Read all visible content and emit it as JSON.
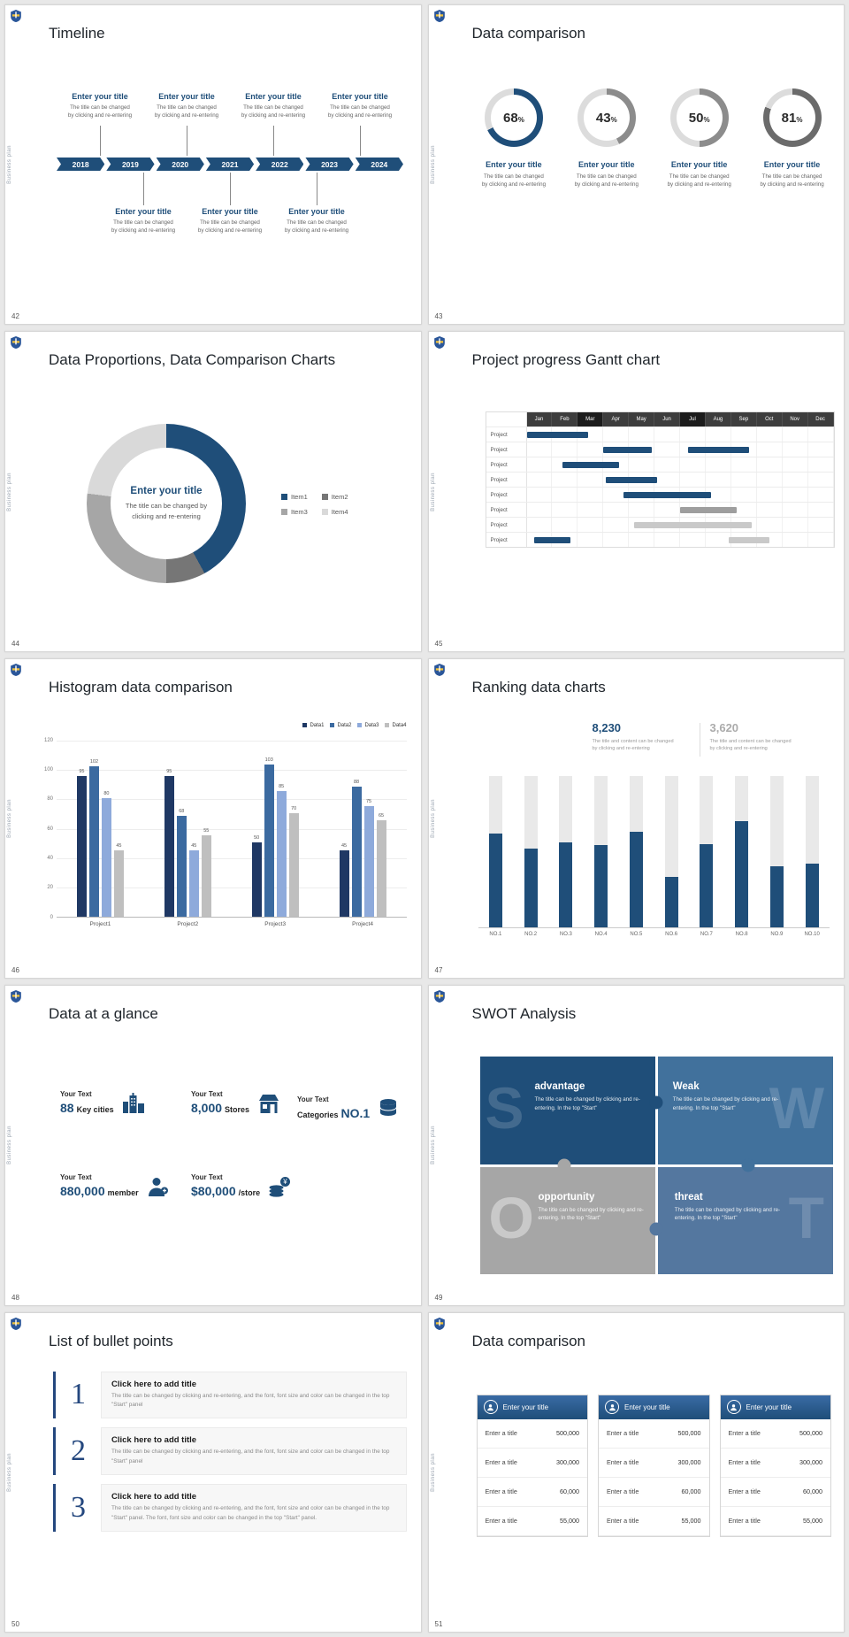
{
  "common": {
    "brand_vertical_text": "Business plan",
    "accent_color": "#1F4E79"
  },
  "slides": [
    {
      "number": "42",
      "title": "Timeline",
      "type": "timeline",
      "years": [
        "2018",
        "2019",
        "2020",
        "2021",
        "2022",
        "2023",
        "2024"
      ],
      "entries_top": [
        {
          "title": "Enter your title",
          "body": [
            "The title can be changed",
            "by clicking and re-entering"
          ]
        },
        {
          "title": "Enter your title",
          "body": [
            "The title can be changed",
            "by clicking and re-entering"
          ]
        },
        {
          "title": "Enter your title",
          "body": [
            "The title can be changed",
            "by clicking and re-entering"
          ]
        },
        {
          "title": "Enter your title",
          "body": [
            "The title can be changed",
            "by clicking and re-entering"
          ]
        }
      ],
      "entries_bottom": [
        {
          "title": "Enter your title",
          "body": [
            "The title can be changed",
            "by clicking and re-entering"
          ]
        },
        {
          "title": "Enter your title",
          "body": [
            "The title can be changed",
            "by clicking and re-entering"
          ]
        },
        {
          "title": "Enter your title",
          "body": [
            "The title can be changed",
            "by clicking and re-entering"
          ]
        }
      ]
    },
    {
      "number": "43",
      "title": "Data comparison",
      "type": "rings",
      "caption_title": "Enter your title",
      "caption_body": [
        "The title can be changed",
        "by clicking and re-entering"
      ],
      "rings": [
        {
          "percent": 68,
          "color": "#1F4E79"
        },
        {
          "percent": 43,
          "color": "#8C8C8C"
        },
        {
          "percent": 50,
          "color": "#8C8C8C"
        },
        {
          "percent": 81,
          "color": "#6B6B6B"
        }
      ],
      "track_color": "#DCDCDC"
    },
    {
      "number": "44",
      "title": "Data Proportions, Data Comparison Charts",
      "type": "donut",
      "center_title": "Enter your title",
      "center_body": [
        "The title can be changed by",
        "clicking and re-entering"
      ],
      "segments": [
        {
          "label": "Item1",
          "value": 42,
          "color": "#1F4E79"
        },
        {
          "label": "Item2",
          "value": 8,
          "color": "#767676"
        },
        {
          "label": "Item3",
          "value": 27,
          "color": "#A6A6A6"
        },
        {
          "label": "Item4",
          "value": 23,
          "color": "#D9D9D9"
        }
      ]
    },
    {
      "number": "45",
      "title": "Project progress Gantt chart",
      "type": "gantt",
      "months": [
        "Jan",
        "Feb",
        "Mar",
        "Apr",
        "May",
        "Jun",
        "Jul",
        "Aug",
        "Sep",
        "Oct",
        "Nov",
        "Dec"
      ],
      "row_label": "Project",
      "rows": [
        {
          "bars": [
            {
              "start": 0,
              "span": 2.4,
              "color": "#1F4E79"
            }
          ]
        },
        {
          "bars": [
            {
              "start": 3,
              "span": 1.9,
              "color": "#1F4E79"
            },
            {
              "start": 6.3,
              "span": 2.4,
              "color": "#1F4E79"
            }
          ]
        },
        {
          "bars": [
            {
              "start": 1.4,
              "span": 2.2,
              "color": "#1F4E79"
            }
          ]
        },
        {
          "bars": [
            {
              "start": 3.1,
              "span": 2.0,
              "color": "#1F4E79"
            }
          ]
        },
        {
          "bars": [
            {
              "start": 3.8,
              "span": 3.4,
              "color": "#1F4E79"
            }
          ]
        },
        {
          "bars": [
            {
              "start": 6.0,
              "span": 2.2,
              "color": "#9E9E9E"
            }
          ]
        },
        {
          "bars": [
            {
              "start": 4.2,
              "span": 4.6,
              "color": "#C9C9C9"
            }
          ]
        },
        {
          "bars": [
            {
              "start": 0.3,
              "span": 1.4,
              "color": "#1F4E79"
            },
            {
              "start": 7.9,
              "span": 1.6,
              "color": "#C9C9C9"
            }
          ]
        }
      ]
    },
    {
      "number": "46",
      "title": "Histogram data comparison",
      "type": "histogram",
      "categories": [
        "Project1",
        "Project2",
        "Project3",
        "Project4"
      ],
      "y_ticks": [
        0,
        20,
        40,
        60,
        80,
        100,
        120
      ],
      "y_max": 120,
      "series": [
        {
          "name": "Data1",
          "color": "#1F3864",
          "values": [
            95,
            95,
            50,
            45
          ]
        },
        {
          "name": "Data2",
          "color": "#3B6AA0",
          "values": [
            102,
            68,
            103,
            88
          ]
        },
        {
          "name": "Data3",
          "color": "#8EAADB",
          "values": [
            80,
            45,
            85,
            75
          ]
        },
        {
          "name": "Data4",
          "color": "#BFBFBF",
          "values": [
            45,
            55,
            70,
            65
          ]
        }
      ]
    },
    {
      "number": "47",
      "title": "Ranking data charts",
      "type": "ranking",
      "stats": [
        {
          "value": "8,230",
          "color": "#1F4E79",
          "body": [
            "The title and content can be changed",
            "by clicking and re-entering"
          ]
        },
        {
          "value": "3,620",
          "color": "#ABABAB",
          "body": [
            "The title and content can be changed",
            "by clicking and re-entering"
          ]
        }
      ],
      "categories": [
        "NO.1",
        "NO.2",
        "NO.3",
        "NO.4",
        "NO.5",
        "NO.6",
        "NO.7",
        "NO.8",
        "NO.9",
        "NO.10"
      ],
      "values": [
        62,
        52,
        56,
        54,
        63,
        33,
        55,
        70,
        40,
        42
      ],
      "bar_color": "#1F4E79",
      "track_color": "#E9E9E9"
    },
    {
      "number": "48",
      "title": "Data at a glance",
      "type": "stats",
      "items": [
        {
          "icon": "city",
          "label": "Your Text",
          "value": "88",
          "unit": "Key cities"
        },
        {
          "icon": "store",
          "label": "Your Text",
          "value": "8,000",
          "unit": "Stores"
        },
        {
          "icon": "database",
          "label": "Your Text",
          "prefix": "Categories",
          "value": "NO.1"
        },
        {
          "icon": "member",
          "label": "Your Text",
          "value": "880,000",
          "unit": "member"
        },
        {
          "icon": "coins",
          "label": "Your Text",
          "value": "$80,000",
          "unit": "/store"
        }
      ]
    },
    {
      "number": "49",
      "title": "SWOT Analysis",
      "type": "swot",
      "quadrants": [
        {
          "letter": "S",
          "word": "advantage",
          "color": "#1F4E79",
          "body": "The title can be changed by clicking and re-entering. In the top \"Start\""
        },
        {
          "letter": "W",
          "word": "Weak",
          "color": "#41719C",
          "body": "The title can be changed by clicking and re-entering. In the top \"Start\""
        },
        {
          "letter": "O",
          "word": "opportunity",
          "color": "#A6A6A6",
          "body": "The title can be changed by clicking and re-entering. In the top \"Start\""
        },
        {
          "letter": "T",
          "word": "threat",
          "color": "#54779F",
          "body": "The title can be changed by clicking and re-entering. In the top \"Start\""
        }
      ]
    },
    {
      "number": "50",
      "title": "List of bullet points",
      "type": "bullets",
      "items": [
        {
          "num": "1",
          "title": "Click here to add title",
          "body": "The title can be changed by clicking and re-entering, and the font, font size and color can be changed in the top \"Start\" panel"
        },
        {
          "num": "2",
          "title": "Click here to add title",
          "body": "The title can be changed by clicking and re-entering, and the font, font size and color can be changed in the top \"Start\" panel"
        },
        {
          "num": "3",
          "title": "Click here to add title",
          "body": "The title can be changed by clicking and re-entering, and the font, font size and color can be changed in the top \"Start\" panel. The font, font size and color can be changed in the top \"Start\" panel."
        }
      ]
    },
    {
      "number": "51",
      "title": "Data comparison",
      "type": "panels",
      "panels": [
        {
          "header": "Enter your title",
          "rows": [
            {
              "label": "Enter a title",
              "value": "500,000"
            },
            {
              "label": "Enter a title",
              "value": "300,000"
            },
            {
              "label": "Enter a title",
              "value": "60,000"
            },
            {
              "label": "Enter a title",
              "value": "55,000"
            }
          ]
        },
        {
          "header": "Enter your title",
          "rows": [
            {
              "label": "Enter a title",
              "value": "500,000"
            },
            {
              "label": "Enter a title",
              "value": "300,000"
            },
            {
              "label": "Enter a title",
              "value": "60,000"
            },
            {
              "label": "Enter a title",
              "value": "55,000"
            }
          ]
        },
        {
          "header": "Enter your title",
          "rows": [
            {
              "label": "Enter a title",
              "value": "500,000"
            },
            {
              "label": "Enter a title",
              "value": "300,000"
            },
            {
              "label": "Enter a title",
              "value": "60,000"
            },
            {
              "label": "Enter a title",
              "value": "55,000"
            }
          ]
        }
      ]
    }
  ]
}
